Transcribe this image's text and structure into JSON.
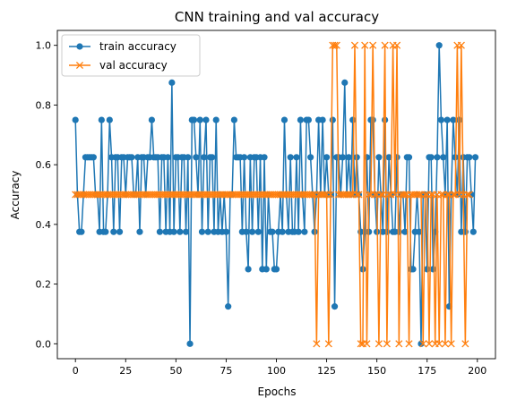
{
  "chart_data": {
    "type": "line",
    "title": "CNN training and val accuracy",
    "xlabel": "Epochs",
    "ylabel": "Accuracy",
    "xlim": [
      -9,
      209
    ],
    "ylim": [
      -0.05,
      1.05
    ],
    "xticks": [
      0,
      25,
      50,
      75,
      100,
      125,
      150,
      175,
      200
    ],
    "yticks": [
      0.0,
      0.2,
      0.4,
      0.6,
      0.8,
      1.0
    ],
    "xtick_labels": [
      "0",
      "25",
      "50",
      "75",
      "100",
      "125",
      "150",
      "175",
      "200"
    ],
    "ytick_labels": [
      "0.0",
      "0.2",
      "0.4",
      "0.6",
      "0.8",
      "1.0"
    ],
    "grid": false,
    "legend": "top-left",
    "series": [
      {
        "name": "train accuracy",
        "color": "#1f77b4",
        "marker": "circle",
        "values": [
          0.75,
          0.5,
          0.375,
          0.375,
          0.5,
          0.625,
          0.625,
          0.625,
          0.625,
          0.625,
          0.5,
          0.5,
          0.375,
          0.75,
          0.375,
          0.375,
          0.5,
          0.75,
          0.625,
          0.375,
          0.625,
          0.625,
          0.375,
          0.625,
          0.625,
          0.5,
          0.625,
          0.625,
          0.625,
          0.5,
          0.5,
          0.625,
          0.375,
          0.625,
          0.625,
          0.5,
          0.625,
          0.625,
          0.75,
          0.625,
          0.625,
          0.625,
          0.375,
          0.625,
          0.625,
          0.375,
          0.625,
          0.375,
          0.875,
          0.375,
          0.625,
          0.625,
          0.375,
          0.625,
          0.625,
          0.375,
          0.625,
          0.0,
          0.75,
          0.75,
          0.625,
          0.5,
          0.75,
          0.375,
          0.625,
          0.75,
          0.375,
          0.625,
          0.625,
          0.375,
          0.75,
          0.375,
          0.5,
          0.375,
          0.5,
          0.375,
          0.125,
          0.5,
          0.5,
          0.75,
          0.625,
          0.625,
          0.625,
          0.375,
          0.625,
          0.375,
          0.25,
          0.625,
          0.375,
          0.625,
          0.625,
          0.375,
          0.625,
          0.25,
          0.625,
          0.25,
          0.5,
          0.375,
          0.375,
          0.25,
          0.25,
          0.375,
          0.5,
          0.375,
          0.75,
          0.5,
          0.375,
          0.625,
          0.375,
          0.375,
          0.625,
          0.375,
          0.75,
          0.5,
          0.375,
          0.75,
          0.75,
          0.625,
          0.5,
          0.375,
          0.5,
          0.75,
          0.5,
          0.75,
          0.5,
          0.625,
          0.5,
          0.5,
          0.75,
          0.125,
          0.625,
          0.625,
          0.5,
          0.625,
          0.875,
          0.5,
          0.625,
          0.5,
          0.75,
          0.5,
          0.625,
          0.5,
          0.375,
          0.25,
          0.375,
          0.625,
          0.375,
          0.75,
          0.75,
          0.5,
          0.375,
          0.625,
          0.5,
          0.375,
          0.75,
          0.375,
          0.625,
          0.5,
          0.375,
          0.375,
          0.625,
          0.375,
          0.5,
          0.5,
          0.375,
          0.625,
          0.625,
          0.25,
          0.25,
          0.375,
          0.5,
          0.375,
          0.0,
          0.5,
          0.5,
          0.25,
          0.625,
          0.625,
          0.25,
          0.375,
          0.625,
          1.0,
          0.75,
          0.625,
          0.5,
          0.75,
          0.125,
          0.5,
          0.75,
          0.625,
          0.5,
          0.75,
          0.375,
          0.625,
          0.375,
          0.625,
          0.625,
          0.5,
          0.375,
          0.625
        ]
      },
      {
        "name": "val accuracy",
        "color": "#ff7f0e",
        "marker": "x",
        "values": [
          0.5,
          0.5,
          0.5,
          0.5,
          0.5,
          0.5,
          0.5,
          0.5,
          0.5,
          0.5,
          0.5,
          0.5,
          0.5,
          0.5,
          0.5,
          0.5,
          0.5,
          0.5,
          0.5,
          0.5,
          0.5,
          0.5,
          0.5,
          0.5,
          0.5,
          0.5,
          0.5,
          0.5,
          0.5,
          0.5,
          0.5,
          0.5,
          0.5,
          0.5,
          0.5,
          0.5,
          0.5,
          0.5,
          0.5,
          0.5,
          0.5,
          0.5,
          0.5,
          0.5,
          0.5,
          0.5,
          0.5,
          0.5,
          0.5,
          0.5,
          0.5,
          0.5,
          0.5,
          0.5,
          0.5,
          0.5,
          0.5,
          0.5,
          0.5,
          0.5,
          0.5,
          0.5,
          0.5,
          0.5,
          0.5,
          0.5,
          0.5,
          0.5,
          0.5,
          0.5,
          0.5,
          0.5,
          0.5,
          0.5,
          0.5,
          0.5,
          0.5,
          0.5,
          0.5,
          0.5,
          0.5,
          0.5,
          0.5,
          0.5,
          0.5,
          0.5,
          0.5,
          0.5,
          0.5,
          0.5,
          0.5,
          0.5,
          0.5,
          0.5,
          0.5,
          0.5,
          0.5,
          0.5,
          0.5,
          0.5,
          0.5,
          0.5,
          0.5,
          0.5,
          0.5,
          0.5,
          0.5,
          0.5,
          0.5,
          0.5,
          0.5,
          0.5,
          0.5,
          0.5,
          0.5,
          0.5,
          0.5,
          0.5,
          0.5,
          0.5,
          0.0,
          0.5,
          0.5,
          0.5,
          0.5,
          0.5,
          0.0,
          0.5,
          1.0,
          1.0,
          1.0,
          0.5,
          0.5,
          0.5,
          0.5,
          0.5,
          0.5,
          0.5,
          0.5,
          1.0,
          0.5,
          0.5,
          0.0,
          0.0,
          1.0,
          0.0,
          0.5,
          0.5,
          1.0,
          0.5,
          0.5,
          0.0,
          0.5,
          0.5,
          1.0,
          0.0,
          0.5,
          0.5,
          1.0,
          0.5,
          1.0,
          0.0,
          0.5,
          0.5,
          0.5,
          0.5,
          0.0,
          0.5,
          0.5,
          0.5,
          0.5,
          0.5,
          0.5,
          0.0,
          0.5,
          0.5,
          0.0,
          0.5,
          0.5,
          0.0,
          0.5,
          0.0,
          0.5,
          0.5,
          0.0,
          0.5,
          0.5,
          0.0,
          0.5,
          0.5,
          1.0,
          0.5,
          1.0,
          0.5,
          0.0,
          0.5,
          0.5
        ]
      }
    ]
  }
}
